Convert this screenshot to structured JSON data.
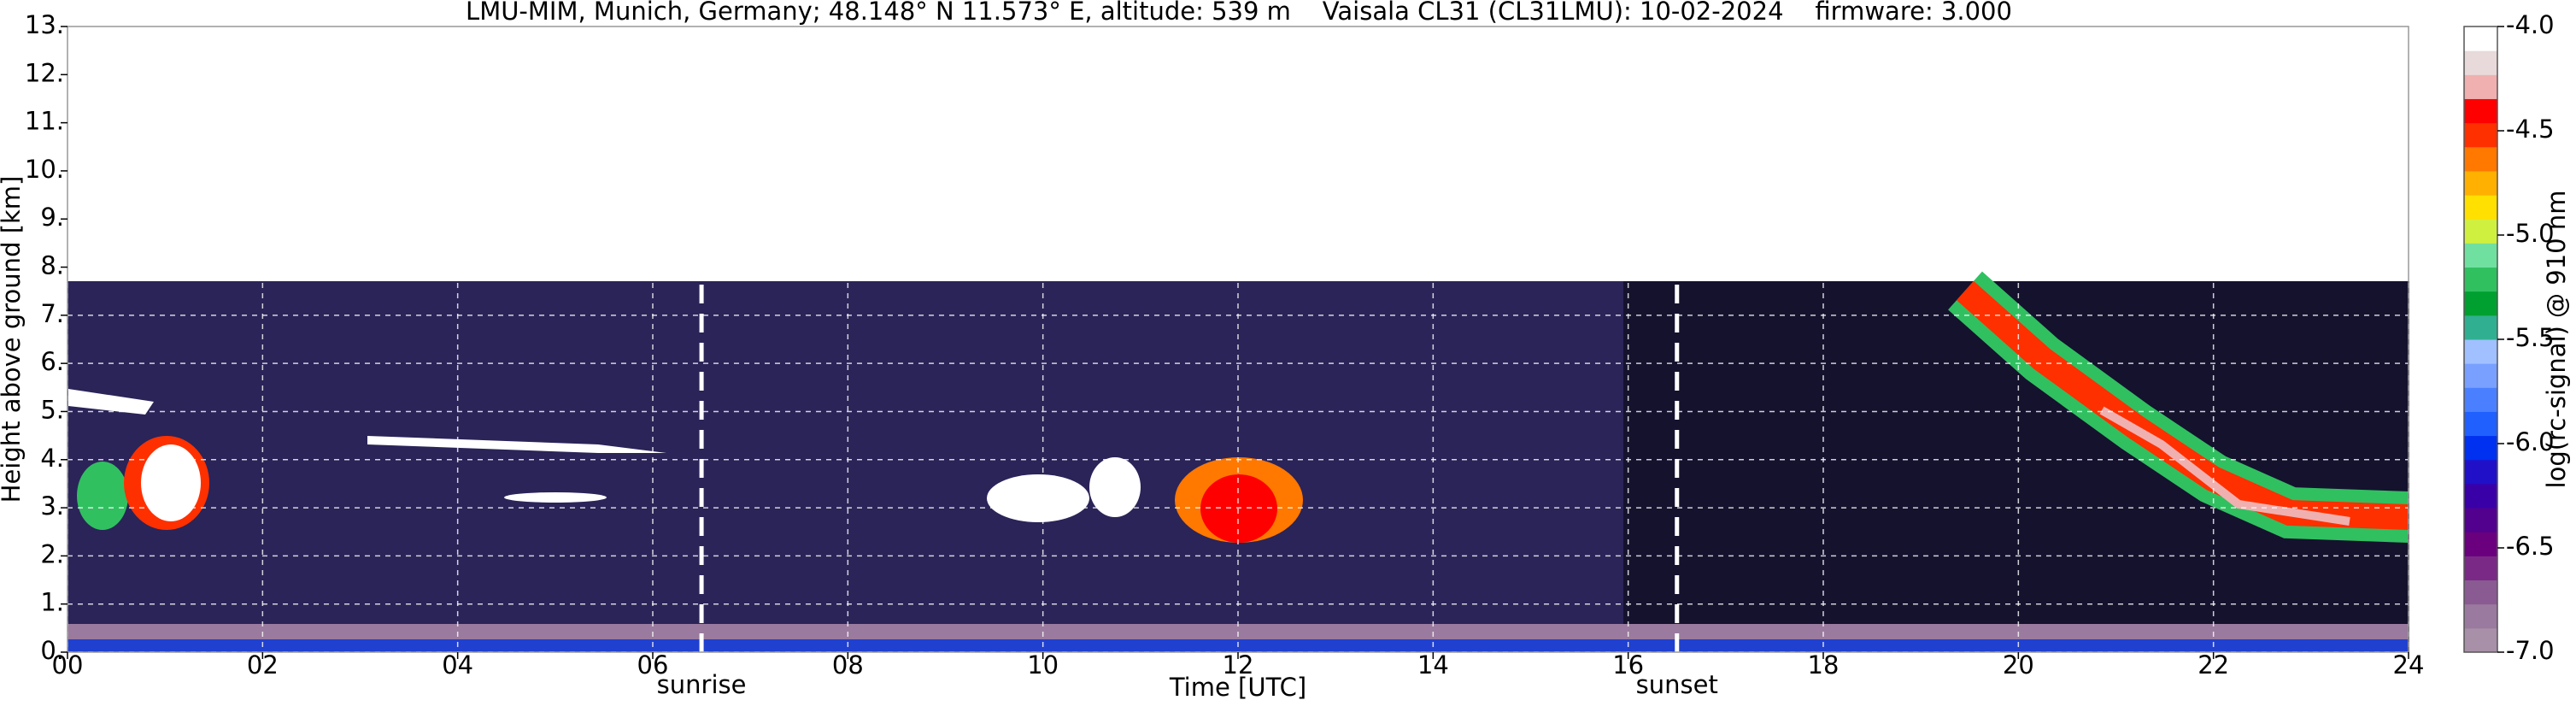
{
  "chart_data": {
    "type": "heatmap",
    "title": "LMU-MIM, Munich, Germany; 48.148° N 11.573° E, altitude: 539 m    Vaisala CL31 (CL31LMU): 10-02-2024    firmware: 3.000",
    "x_label": "Time [UTC]",
    "y_label": "Height above ground [km]",
    "colorbar_label": "log(rc-signal) @ 910 nm",
    "xlim": [
      0,
      24
    ],
    "xticks": [
      {
        "value": 0,
        "label": "00"
      },
      {
        "value": 2,
        "label": "02"
      },
      {
        "value": 4,
        "label": "04"
      },
      {
        "value": 6,
        "label": "06"
      },
      {
        "value": 8,
        "label": "08"
      },
      10,
      12,
      14,
      16,
      18,
      20,
      22,
      24
    ],
    "ylim": [
      0,
      13
    ],
    "yticks": [
      {
        "value": 0,
        "label": "0."
      },
      {
        "value": 1,
        "label": "1."
      },
      {
        "value": 2,
        "label": "2."
      },
      {
        "value": 3,
        "label": "3."
      },
      {
        "value": 4,
        "label": "4."
      },
      {
        "value": 5,
        "label": "5."
      },
      {
        "value": 6,
        "label": "6."
      },
      {
        "value": 7,
        "label": "7."
      },
      {
        "value": 8,
        "label": "8."
      },
      {
        "value": 9,
        "label": "9."
      },
      {
        "value": 10,
        "label": "10."
      },
      {
        "value": 11,
        "label": "11."
      },
      {
        "value": 12,
        "label": "12."
      },
      {
        "value": 13,
        "label": "13."
      }
    ],
    "clim": [
      -7,
      -4
    ],
    "cticks": [
      {
        "value": -4,
        "label": "-4.0"
      },
      {
        "value": -4.5,
        "label": "-4.5"
      },
      {
        "value": -5,
        "label": "-5.0"
      },
      {
        "value": -5.5,
        "label": "-5.5"
      },
      {
        "value": -6,
        "label": "-6.0"
      },
      {
        "value": -6.5,
        "label": "-6.5"
      },
      {
        "value": -7,
        "label": "-7.0"
      }
    ],
    "colormap": [
      "#a890a8",
      "#9a7a9e",
      "#8a5a92",
      "#7a2a86",
      "#6a007e",
      "#52008e",
      "#3a00a8",
      "#2010c8",
      "#0030f0",
      "#2060ff",
      "#4a80ff",
      "#7aa0ff",
      "#a0c0ff",
      "#30b090",
      "#00a030",
      "#30c060",
      "#70e0a0",
      "#d0f040",
      "#ffe000",
      "#ffb000",
      "#ff7800",
      "#ff3000",
      "#ff0000",
      "#f0b0b0",
      "#e8dada",
      "#ffffff"
    ],
    "grid": true,
    "annotations": [
      {
        "text": "sunrise",
        "x": 6.5
      },
      {
        "text": "sunset",
        "x": 16.5
      }
    ]
  }
}
